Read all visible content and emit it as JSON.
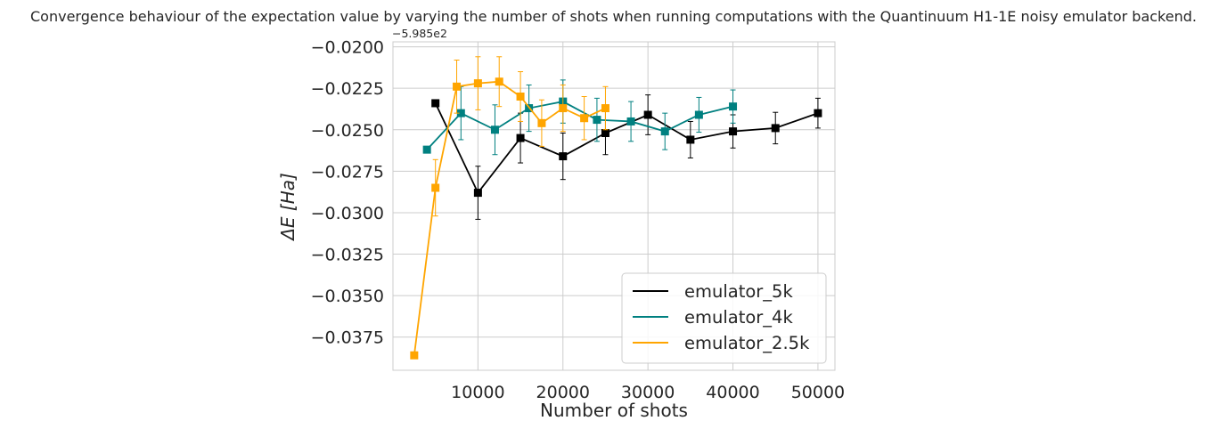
{
  "chart_data": {
    "type": "line",
    "title": "Convergence behaviour of the expectation value by varying the number of shots when running computations with the Quantinuum H1-1E noisy emulator backend.",
    "xlabel": "Number of shots",
    "ylabel_prefix": "ΔE ",
    "ylabel_unit": "[Ha]",
    "y_offset_label": "−5.985e2",
    "xlim": [
      0,
      52000
    ],
    "ylim": [
      -0.0395,
      -0.0197
    ],
    "x_ticks": [
      10000,
      20000,
      30000,
      40000,
      50000
    ],
    "x_tick_labels": [
      "10000",
      "20000",
      "30000",
      "40000",
      "50000"
    ],
    "y_ticks": [
      -0.02,
      -0.0225,
      -0.025,
      -0.0275,
      -0.03,
      -0.0325,
      -0.035,
      -0.0375
    ],
    "y_tick_labels": [
      "−0.0200",
      "−0.0225",
      "−0.0250",
      "−0.0275",
      "−0.0300",
      "−0.0325",
      "−0.0350",
      "−0.0375"
    ],
    "grid": true,
    "legend_position": "lower-right",
    "series": [
      {
        "name": "emulator_5k",
        "color": "#000000",
        "x": [
          5000,
          10000,
          15000,
          20000,
          25000,
          30000,
          35000,
          40000,
          45000,
          50000
        ],
        "y": [
          -0.0234,
          -0.0288,
          -0.0255,
          -0.0266,
          -0.0252,
          -0.0241,
          -0.0256,
          -0.0251,
          -0.0249,
          -0.024
        ],
        "err": [
          0,
          0.0016,
          0.0015,
          0.0014,
          0.0013,
          0.0012,
          0.0011,
          0.001,
          0.00095,
          0.0009
        ]
      },
      {
        "name": "emulator_4k",
        "color": "#008080",
        "x": [
          4000,
          8000,
          12000,
          16000,
          20000,
          24000,
          28000,
          32000,
          36000,
          40000
        ],
        "y": [
          -0.0262,
          -0.024,
          -0.025,
          -0.0237,
          -0.0233,
          -0.0244,
          -0.0245,
          -0.0251,
          -0.0241,
          -0.0236
        ],
        "err": [
          0,
          0.0016,
          0.0015,
          0.0014,
          0.0013,
          0.0013,
          0.0012,
          0.0011,
          0.00105,
          0.001
        ]
      },
      {
        "name": "emulator_2.5k",
        "color": "#FFA500",
        "x": [
          2500,
          5000,
          7500,
          10000,
          12500,
          15000,
          17500,
          20000,
          22500,
          25000
        ],
        "y": [
          -0.0386,
          -0.0285,
          -0.0224,
          -0.0222,
          -0.0221,
          -0.023,
          -0.0246,
          -0.0237,
          -0.0243,
          -0.0237
        ],
        "err": [
          0,
          0.0017,
          0.0016,
          0.0016,
          0.0015,
          0.0015,
          0.0014,
          0.0014,
          0.0013,
          0.0013
        ]
      }
    ]
  }
}
